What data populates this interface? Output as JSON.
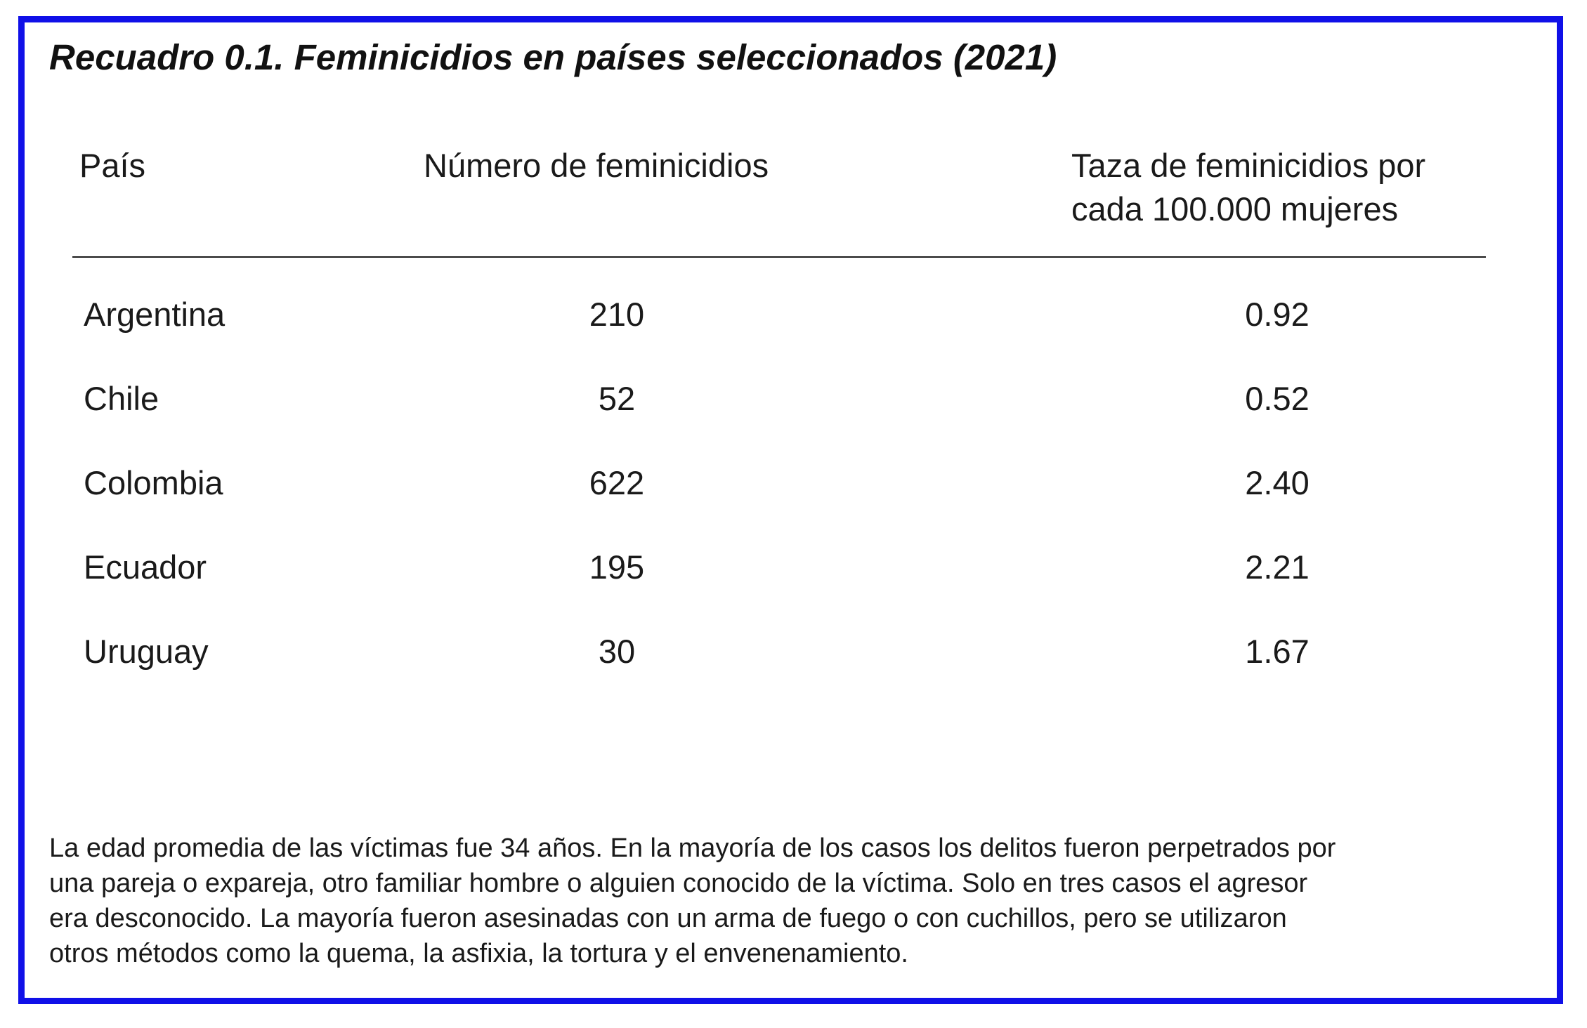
{
  "title": "Recuadro 0.1. Feminicidios en países seleccionados (2021)",
  "chart_data": {
    "type": "table",
    "title": "Recuadro 0.1. Feminicidios en países seleccionados (2021)",
    "columns": [
      "País",
      "Número de feminicidios",
      "Taza de feminicidios por cada 100.000 mujeres"
    ],
    "column_label_lines": {
      "rate_line1": "Taza de feminicidios por",
      "rate_line2": "cada 100.000 mujeres"
    },
    "rows": [
      {
        "country": "Argentina",
        "count": "210",
        "rate": "0.92"
      },
      {
        "country": "Chile",
        "count": "52",
        "rate": "0.52"
      },
      {
        "country": "Colombia",
        "count": "622",
        "rate": "2.40"
      },
      {
        "country": "Ecuador",
        "count": "195",
        "rate": "2.21"
      },
      {
        "country": "Uruguay",
        "count": "30",
        "rate": "1.67"
      }
    ]
  },
  "note": {
    "line1": "La edad promedia de las víctimas fue 34 años. En la mayoría de los casos los delitos fueron perpetrados por",
    "line2": "una pareja o expareja, otro familiar hombre o alguien conocido de la víctima. Solo en tres casos el agresor",
    "line3": "era desconocido. La mayoría fueron asesinadas con un arma de fuego o con cuchillos, pero se utilizaron",
    "line4": "otros métodos como la quema, la asfixia, la tortura y el envenenamiento."
  },
  "colors": {
    "frame": "#1010e8",
    "text": "#1a1a1a"
  }
}
